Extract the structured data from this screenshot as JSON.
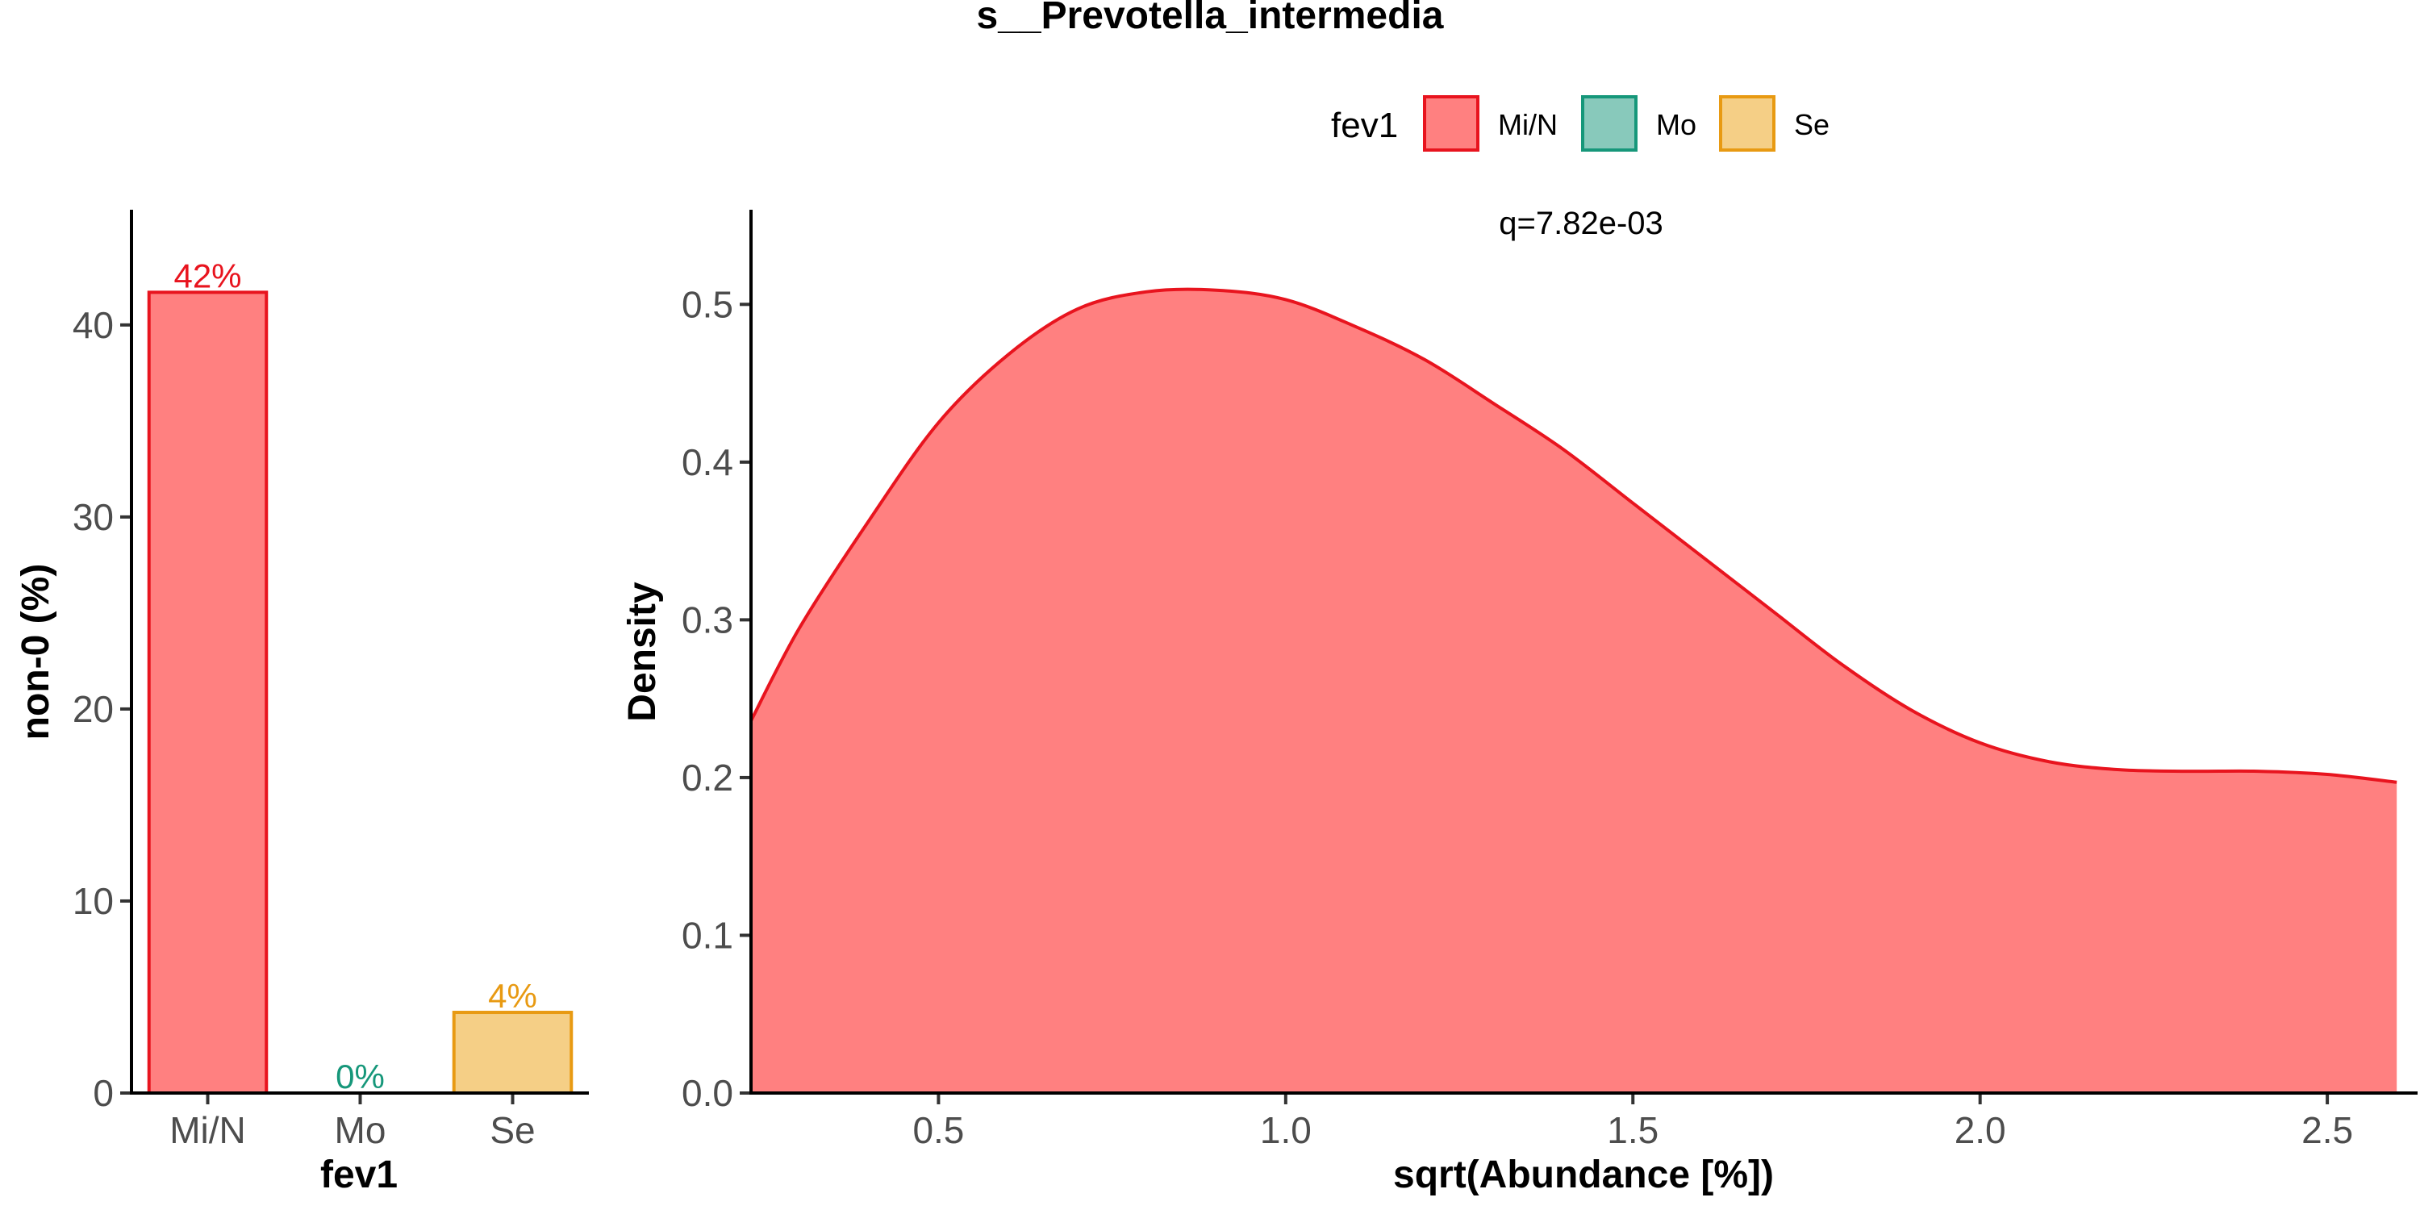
{
  "title": "s__Prevotella_intermedia",
  "legend": {
    "title": "fev1",
    "items": [
      {
        "label": "Mi/N",
        "fill": "#ff8080",
        "stroke": "#e8141e"
      },
      {
        "label": "Mo",
        "fill": "#88c9bb",
        "stroke": "#16977a"
      },
      {
        "label": "Se",
        "fill": "#f5cf86",
        "stroke": "#e89a12"
      }
    ]
  },
  "chart_data": [
    {
      "type": "bar",
      "xlabel": "fev1",
      "ylabel": "non-0 (%)",
      "categories": [
        "Mi/N",
        "Mo",
        "Se"
      ],
      "values": [
        41.7,
        0,
        4.2
      ],
      "data_labels": [
        "42%",
        "0%",
        "4%"
      ],
      "label_colors": [
        "#e8141e",
        "#16977a",
        "#e89a12"
      ],
      "fills": [
        "#ff8080",
        "#88c9bb",
        "#f5cf86"
      ],
      "strokes": [
        "#e8141e",
        "#16977a",
        "#e89a12"
      ],
      "ylim": [
        0,
        46
      ],
      "yticks": [
        0,
        10,
        20,
        30,
        40
      ]
    },
    {
      "type": "area",
      "xlabel": "sqrt(Abundance [%])",
      "ylabel": "Density",
      "annotation": "q=7.82e-03",
      "series": [
        {
          "fill": "#ff8080",
          "stroke": "#e8141e",
          "x": [
            0.23,
            0.3,
            0.4,
            0.5,
            0.6,
            0.7,
            0.8,
            0.9,
            1.0,
            1.1,
            1.2,
            1.3,
            1.4,
            1.5,
            1.6,
            1.7,
            1.8,
            1.9,
            2.0,
            2.1,
            2.2,
            2.3,
            2.4,
            2.5,
            2.6
          ],
          "y": [
            0.236,
            0.295,
            0.363,
            0.425,
            0.468,
            0.497,
            0.508,
            0.509,
            0.503,
            0.486,
            0.465,
            0.437,
            0.408,
            0.374,
            0.34,
            0.306,
            0.272,
            0.243,
            0.222,
            0.21,
            0.205,
            0.204,
            0.204,
            0.202,
            0.197
          ]
        }
      ],
      "xlim": [
        0.23,
        2.63
      ],
      "ylim": [
        0,
        0.56
      ],
      "xticks": [
        0.5,
        1.0,
        1.5,
        2.0,
        2.5
      ],
      "xtick_labels": [
        "0.5",
        "1.0",
        "1.5",
        "2.0",
        "2.5"
      ],
      "yticks": [
        0,
        0.1,
        0.2,
        0.3,
        0.4,
        0.5
      ],
      "ytick_labels": [
        "0.0",
        "0.1",
        "0.2",
        "0.3",
        "0.4",
        "0.5"
      ]
    }
  ]
}
